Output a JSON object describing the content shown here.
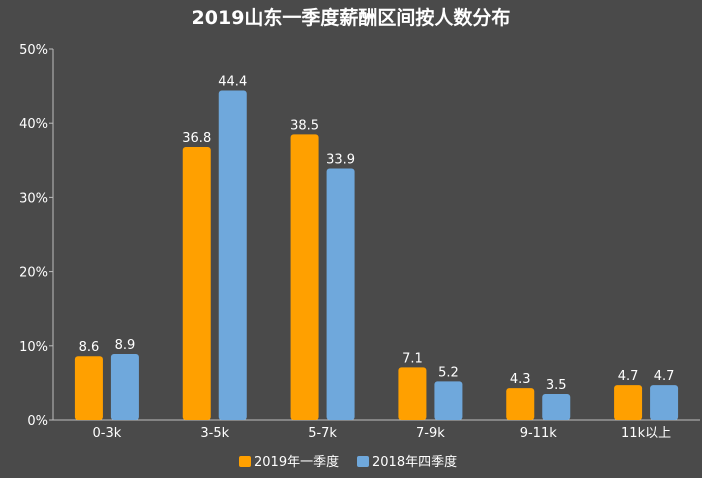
{
  "chart_data": {
    "type": "bar",
    "title": "2019山东一季度薪酬区间按人数分布",
    "categories": [
      "0-3k",
      "3-5k",
      "5-7k",
      "7-9k",
      "9-11k",
      "11k以上"
    ],
    "series": [
      {
        "name": "2019年一季度",
        "color": "#ffa000",
        "values": [
          8.6,
          36.8,
          38.5,
          7.1,
          4.3,
          4.7
        ]
      },
      {
        "name": "2018年四季度",
        "color": "#6fa8dc",
        "values": [
          8.9,
          44.4,
          33.9,
          5.2,
          3.5,
          4.7
        ]
      }
    ],
    "ylim": [
      0,
      50
    ],
    "yticks": [
      0,
      10,
      20,
      30,
      40,
      50
    ],
    "ytick_labels": [
      "0%",
      "10%",
      "20%",
      "30%",
      "40%",
      "50%"
    ],
    "xlabel": "",
    "ylabel": "",
    "legend_position": "bottom"
  }
}
